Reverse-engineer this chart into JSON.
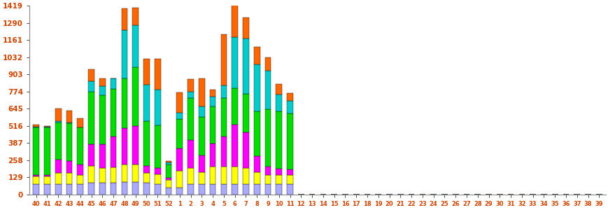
{
  "categories": [
    "40",
    "41",
    "42",
    "43",
    "44",
    "45",
    "46",
    "47",
    "48",
    "49",
    "50",
    "51",
    "52",
    "1",
    "2",
    "3",
    "4",
    "5",
    "6",
    "7",
    "8",
    "9",
    "10",
    "11",
    "12",
    "13",
    "14",
    "15",
    "16",
    "17",
    "18",
    "19",
    "20",
    "21",
    "22",
    "23",
    "24",
    "25",
    "26",
    "27",
    "28",
    "29",
    "30",
    "31",
    "32",
    "33",
    "34",
    "35",
    "36",
    "37",
    "38",
    "39"
  ],
  "colors": [
    "#aaaaff",
    "#ffff00",
    "#ff00ff",
    "#00dd00",
    "#00cccc",
    "#ff6600"
  ],
  "layers": [
    "blue",
    "yellow",
    "magenta",
    "green",
    "cyan",
    "orange"
  ],
  "data": {
    "blue": [
      80,
      80,
      80,
      80,
      80,
      90,
      90,
      90,
      95,
      95,
      90,
      80,
      50,
      50,
      80,
      80,
      80,
      80,
      80,
      80,
      80,
      80,
      80,
      80,
      0,
      0,
      0,
      0,
      0,
      0,
      0,
      0,
      0,
      0,
      0,
      0,
      0,
      0,
      0,
      0,
      0,
      0,
      0,
      0,
      0,
      0,
      0,
      0,
      0,
      0,
      0,
      0
    ],
    "yellow": [
      55,
      55,
      80,
      80,
      65,
      125,
      110,
      115,
      130,
      130,
      70,
      70,
      60,
      130,
      120,
      85,
      130,
      130,
      130,
      120,
      90,
      65,
      65,
      65,
      0,
      0,
      0,
      0,
      0,
      0,
      0,
      0,
      0,
      0,
      0,
      0,
      0,
      0,
      0,
      0,
      0,
      0,
      0,
      0,
      0,
      0,
      0,
      0,
      0,
      0,
      0,
      0
    ],
    "magenta": [
      10,
      10,
      100,
      90,
      80,
      165,
      180,
      230,
      275,
      290,
      55,
      50,
      15,
      165,
      210,
      130,
      175,
      225,
      315,
      265,
      120,
      65,
      50,
      45,
      0,
      0,
      0,
      0,
      0,
      0,
      0,
      0,
      0,
      0,
      0,
      0,
      0,
      0,
      0,
      0,
      0,
      0,
      0,
      0,
      0,
      0,
      0,
      0,
      0,
      0,
      0,
      0
    ],
    "green": [
      360,
      360,
      280,
      285,
      280,
      390,
      365,
      360,
      375,
      440,
      335,
      320,
      100,
      220,
      315,
      290,
      275,
      290,
      275,
      290,
      335,
      430,
      430,
      420,
      0,
      0,
      0,
      0,
      0,
      0,
      0,
      0,
      0,
      0,
      0,
      0,
      0,
      0,
      0,
      0,
      0,
      0,
      0,
      0,
      0,
      0,
      0,
      0,
      0,
      0,
      0,
      0
    ],
    "cyan": [
      5,
      5,
      10,
      5,
      0,
      80,
      70,
      75,
      360,
      320,
      275,
      270,
      15,
      50,
      45,
      75,
      75,
      95,
      385,
      415,
      355,
      290,
      125,
      95,
      0,
      0,
      0,
      0,
      0,
      0,
      0,
      0,
      0,
      0,
      0,
      0,
      0,
      0,
      0,
      0,
      0,
      0,
      0,
      0,
      0,
      0,
      0,
      0,
      0,
      0,
      0,
      0
    ],
    "orange": [
      15,
      5,
      95,
      90,
      65,
      90,
      55,
      5,
      165,
      130,
      195,
      230,
      10,
      150,
      95,
      215,
      55,
      385,
      270,
      160,
      130,
      100,
      80,
      55,
      0,
      0,
      0,
      0,
      0,
      0,
      0,
      0,
      0,
      0,
      0,
      0,
      0,
      0,
      0,
      0,
      0,
      0,
      0,
      0,
      0,
      0,
      0,
      0,
      0,
      0,
      0,
      0
    ]
  },
  "ylim": [
    0,
    1419
  ],
  "yticks": [
    0,
    129,
    258,
    387,
    516,
    645,
    774,
    903,
    1032,
    1161,
    1290,
    1419
  ],
  "bar_width": 0.55,
  "figsize": [
    8.7,
    3.0
  ],
  "dpi": 100
}
